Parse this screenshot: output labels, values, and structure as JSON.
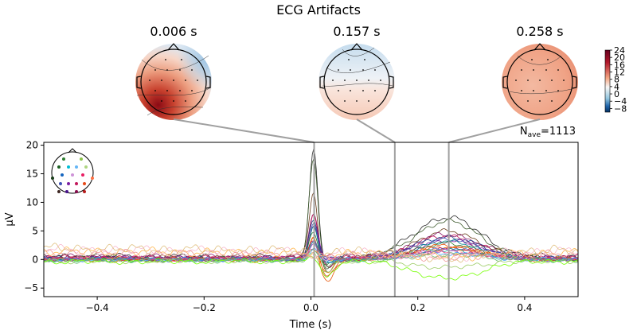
{
  "chart_data": {
    "type": "line",
    "title": "ECG Artifacts",
    "xlabel": "Time (s)",
    "ylabel": "µV",
    "xlim": [
      -0.5,
      0.5
    ],
    "ylim": [
      -6.5,
      20.5
    ],
    "xticks": [
      -0.4,
      -0.2,
      0.0,
      0.2,
      0.4
    ],
    "xtick_labels": [
      "−0.4",
      "−0.2",
      "0.0",
      "0.2",
      "0.4"
    ],
    "yticks": [
      -5,
      0,
      5,
      10,
      15,
      20
    ],
    "ytick_labels": [
      "−5",
      "0",
      "5",
      "10",
      "15",
      "20"
    ],
    "nave_label": "N",
    "nave_sub": "ave",
    "nave_value": "=1113",
    "grid": false,
    "topomaps": [
      {
        "time": 0.006,
        "label": "0.006 s"
      },
      {
        "time": 0.157,
        "label": "0.157 s"
      },
      {
        "time": 0.258,
        "label": "0.258 s"
      }
    ],
    "markers": [
      0.006,
      0.157,
      0.258
    ],
    "colorbar": {
      "ticks": [
        24,
        20,
        16,
        12,
        8,
        4,
        0,
        -4,
        -8
      ],
      "tick_labels": [
        "24",
        "20",
        "16",
        "12",
        "8",
        "4",
        "0",
        "−4",
        "−8"
      ],
      "range": [
        -10,
        24
      ]
    },
    "series": [
      {
        "color": "#2b2b2b",
        "peak": 19.3,
        "trough": -1.5,
        "late": 7.6,
        "base": 0.6
      },
      {
        "color": "#3e5b2e",
        "peak": 17.8,
        "trough": -2.0,
        "late": 6.8,
        "base": 0.4
      },
      {
        "color": "#6b3d1c",
        "peak": 12.0,
        "trough": -3.0,
        "late": 5.0,
        "base": 0.3
      },
      {
        "color": "#8b1a6b",
        "peak": 8.6,
        "trough": -0.8,
        "late": 4.5,
        "base": 0.5
      },
      {
        "color": "#c2185b",
        "peak": 7.9,
        "trough": -1.2,
        "late": 4.2,
        "base": 0.3
      },
      {
        "color": "#1e3f8a",
        "peak": 7.1,
        "trough": 0.2,
        "late": 4.0,
        "base": 0.2
      },
      {
        "color": "#3f51b5",
        "peak": 6.5,
        "trough": -0.5,
        "late": 3.6,
        "base": 0.1
      },
      {
        "color": "#7b1fa2",
        "peak": 6.0,
        "trough": 0.4,
        "late": 3.3,
        "base": 0.2
      },
      {
        "color": "#00838f",
        "peak": 5.4,
        "trough": -0.3,
        "late": 3.1,
        "base": 0.0
      },
      {
        "color": "#2e7d32",
        "peak": 5.0,
        "trough": -1.0,
        "late": 2.8,
        "base": 0.1
      },
      {
        "color": "#e65100",
        "peak": 4.5,
        "trough": -5.0,
        "late": 2.4,
        "base": -0.1
      },
      {
        "color": "#d84315",
        "peak": 4.2,
        "trough": -3.5,
        "late": 2.2,
        "base": 0.0
      },
      {
        "color": "#ef6c00",
        "peak": 3.8,
        "trough": -2.8,
        "late": 2.0,
        "base": 0.1
      },
      {
        "color": "#ad1457",
        "peak": 3.5,
        "trough": 0.6,
        "late": 1.9,
        "base": 0.2
      },
      {
        "color": "#5c6bc0",
        "peak": 3.2,
        "trough": 0.1,
        "late": 1.8,
        "base": 0.0
      },
      {
        "color": "#26a69a",
        "peak": 2.9,
        "trough": -0.4,
        "late": 1.6,
        "base": -0.1
      },
      {
        "color": "#ab47bc",
        "peak": 2.6,
        "trough": 0.3,
        "late": 1.5,
        "base": 0.1
      },
      {
        "color": "#ec407a",
        "peak": 2.3,
        "trough": -0.2,
        "late": 1.3,
        "base": 0.2
      },
      {
        "color": "#42a5f5",
        "peak": 2.0,
        "trough": -0.6,
        "late": 1.1,
        "base": 0.0
      },
      {
        "color": "#66bb6a",
        "peak": 1.6,
        "trough": -1.4,
        "late": 0.8,
        "base": -0.2
      },
      {
        "color": "#9ccc65",
        "peak": 1.2,
        "trough": -3.0,
        "late": -1.5,
        "base": -0.3
      },
      {
        "color": "#76ff03",
        "peak": 0.8,
        "trough": -4.0,
        "late": -3.5,
        "base": -0.4
      },
      {
        "color": "#ffb74d",
        "peak": 1.5,
        "trough": 0.8,
        "late": 0.9,
        "base": 1.5
      },
      {
        "color": "#f8bbd0",
        "peak": 1.3,
        "trough": 1.0,
        "late": 1.0,
        "base": 1.8
      },
      {
        "color": "#e0c080",
        "peak": 1.1,
        "trough": 0.9,
        "late": 0.8,
        "base": 2.0
      },
      {
        "color": "#ef9a9a",
        "peak": 1.0,
        "trough": 0.5,
        "late": 0.6,
        "base": 1.2
      }
    ]
  }
}
